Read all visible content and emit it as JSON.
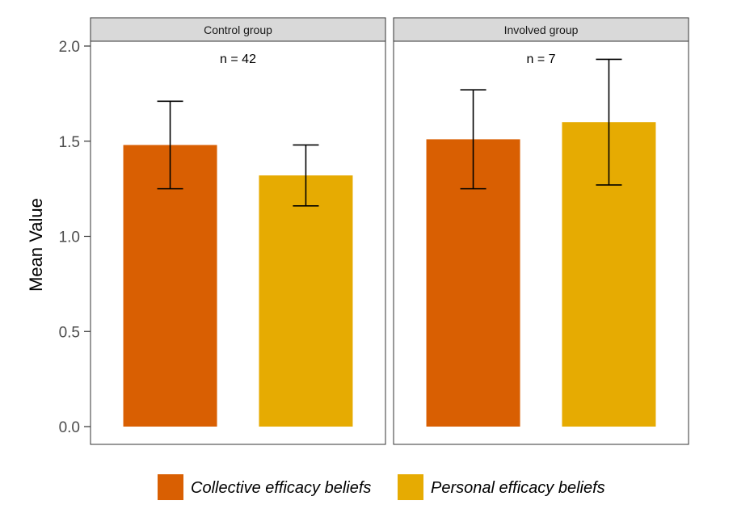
{
  "chart_data": {
    "type": "bar",
    "ylabel": "Mean Value",
    "xlabel": "",
    "ylim": [
      0,
      2.0
    ],
    "yticks": [
      "0.0",
      "0.5",
      "1.0",
      "1.5",
      "2.0"
    ],
    "grid": false,
    "legend_position": "bottom",
    "categories": [
      "Collective efficacy beliefs",
      "Personal efficacy beliefs"
    ],
    "series_colors": [
      "#D95F02",
      "#E6AB02"
    ],
    "panels": [
      {
        "label": "Control group",
        "n_label": "n = 42",
        "values": [
          1.48,
          1.32
        ],
        "error_low": [
          1.25,
          1.16
        ],
        "error_high": [
          1.71,
          1.48
        ]
      },
      {
        "label": "Involved group",
        "n_label": "n = 7",
        "values": [
          1.51,
          1.6
        ],
        "error_low": [
          1.25,
          1.27
        ],
        "error_high": [
          1.77,
          1.93
        ]
      }
    ]
  }
}
